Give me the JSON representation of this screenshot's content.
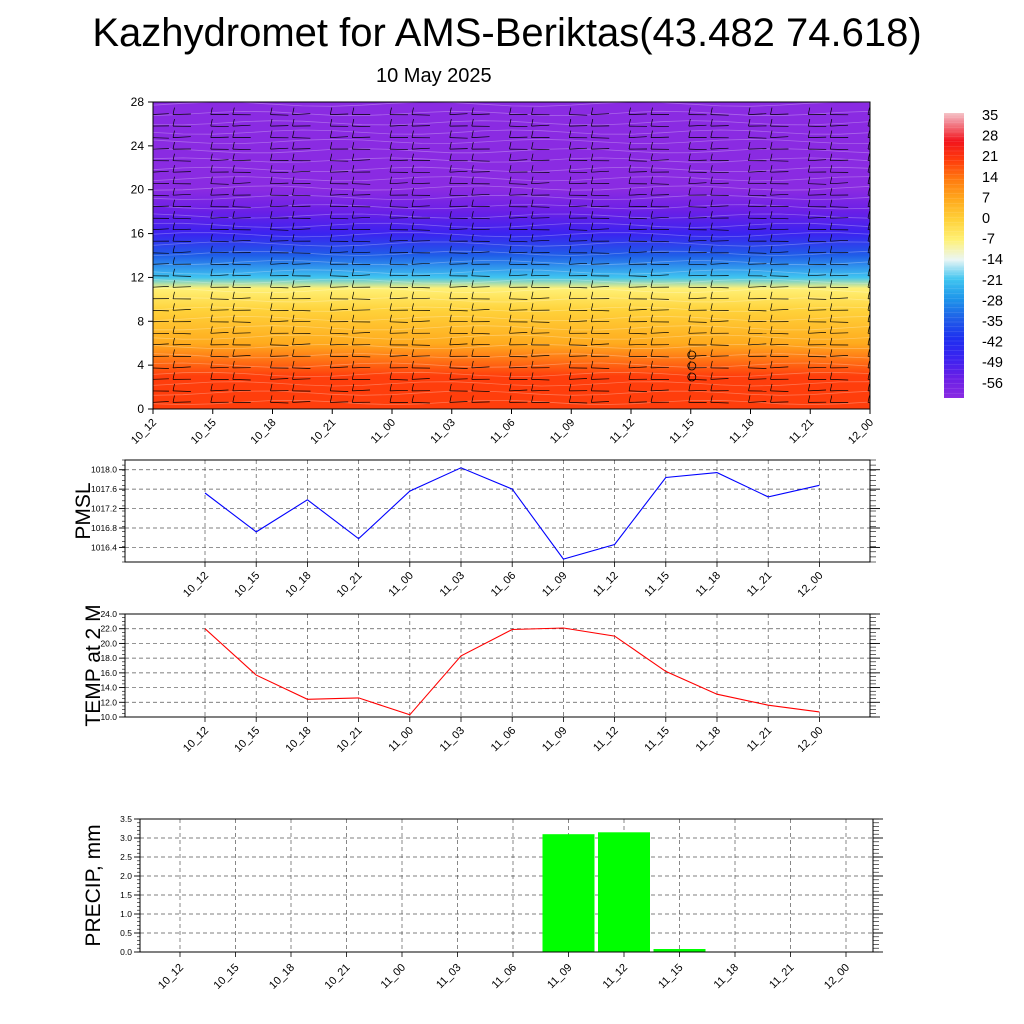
{
  "header": {
    "title": "Kazhydromet for AMS-Beriktas(43.482 74.618)",
    "subtitle": "10 May 2025"
  },
  "chart_data": [
    {
      "type": "heatmap",
      "name": "temperature-profile",
      "x_categories": [
        "10_12",
        "10_15",
        "10_18",
        "10_21",
        "11_00",
        "11_03",
        "11_06",
        "11_09",
        "11_12",
        "11_15",
        "11_18",
        "11_21",
        "12_00"
      ],
      "y_ticks": [
        "0",
        "4",
        "8",
        "12",
        "16",
        "20",
        "24",
        "28"
      ],
      "ylim": [
        0,
        28
      ],
      "colorbar": {
        "labels": [
          "35",
          "28",
          "21",
          "14",
          "7",
          "0",
          "-7",
          "-14",
          "-21",
          "-28",
          "-35",
          "-42",
          "-49",
          "-56"
        ],
        "range": [
          -63,
          38
        ]
      },
      "field_profile": [
        {
          "level": 0,
          "value": 26
        },
        {
          "level": 3,
          "value": 22
        },
        {
          "level": 6,
          "value": 14
        },
        {
          "level": 9,
          "value": 4
        },
        {
          "level": 11,
          "value": -4
        },
        {
          "level": 12,
          "value": -18
        },
        {
          "level": 14,
          "value": -28
        },
        {
          "level": 16,
          "value": -42
        },
        {
          "level": 18,
          "value": -54
        },
        {
          "level": 20,
          "value": -60
        },
        {
          "level": 22,
          "value": -61
        },
        {
          "level": 24,
          "value": -62
        },
        {
          "level": 28,
          "value": -63
        }
      ],
      "grid": false
    },
    {
      "type": "line",
      "name": "pmsl",
      "ylabel": "PMSL",
      "x_categories": [
        "10_12",
        "10_15",
        "10_18",
        "10_21",
        "11_00",
        "11_03",
        "11_06",
        "11_09",
        "11_12",
        "11_15",
        "11_18",
        "11_21",
        "12_00"
      ],
      "y_ticks": [
        "1016.4",
        "1016.8",
        "1017.2",
        "1017.6",
        "1018.0"
      ],
      "ylim": [
        1016.1,
        1018.2
      ],
      "values": [
        1017.52,
        1016.72,
        1017.38,
        1016.58,
        1017.56,
        1018.04,
        1017.6,
        1016.16,
        1016.46,
        1017.84,
        1017.94,
        1017.44,
        1017.68
      ],
      "color": "#0000ff",
      "grid": true
    },
    {
      "type": "line",
      "name": "temp-2m",
      "ylabel": "TEMP at 2 M",
      "x_categories": [
        "10_12",
        "10_15",
        "10_18",
        "10_21",
        "11_00",
        "11_03",
        "11_06",
        "11_09",
        "11_12",
        "11_15",
        "11_18",
        "11_21",
        "12_00"
      ],
      "y_ticks": [
        "10.0",
        "12.0",
        "14.0",
        "16.0",
        "18.0",
        "20.0",
        "22.0",
        "24.0"
      ],
      "ylim": [
        10,
        24
      ],
      "values": [
        22.0,
        15.7,
        12.4,
        12.6,
        10.3,
        18.3,
        21.9,
        22.1,
        21.0,
        16.2,
        13.1,
        11.6,
        10.7
      ],
      "color": "#ff0000",
      "grid": true
    },
    {
      "type": "bar",
      "name": "precip",
      "ylabel": "PRECIP, mm",
      "x_categories": [
        "10_12",
        "10_15",
        "10_18",
        "10_21",
        "11_00",
        "11_03",
        "11_06",
        "11_09",
        "11_12",
        "11_15",
        "11_18",
        "11_21",
        "12_00"
      ],
      "y_ticks": [
        "0.0",
        "0.5",
        "1.0",
        "1.5",
        "2.0",
        "2.5",
        "3.0",
        "3.5"
      ],
      "ylim": [
        0,
        3.5
      ],
      "values": [
        0,
        0,
        0,
        0,
        0,
        0,
        0,
        3.1,
        3.15,
        0.08,
        0,
        0,
        0
      ],
      "color": "#00ff00",
      "grid": true
    }
  ]
}
